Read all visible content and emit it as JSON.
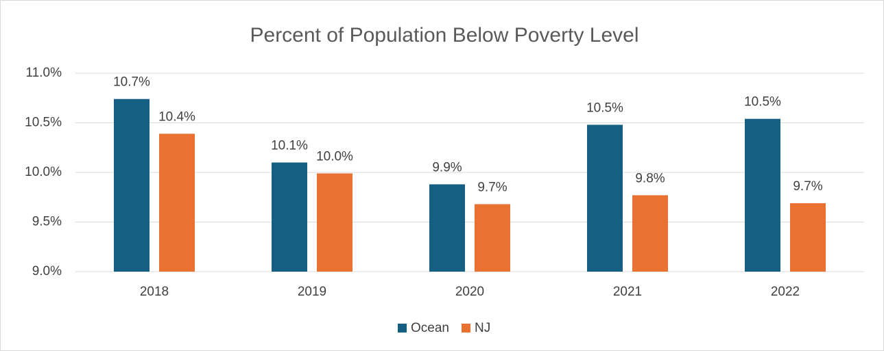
{
  "chart_data": {
    "type": "bar",
    "title": "Percent of Population Below Poverty Level",
    "categories": [
      "2018",
      "2019",
      "2020",
      "2021",
      "2022"
    ],
    "series": [
      {
        "name": "Ocean",
        "color": "#156082",
        "values": [
          10.74,
          10.1,
          9.88,
          10.48,
          10.54
        ],
        "value_labels": [
          "10.7%",
          "10.1%",
          "9.9%",
          "10.5%",
          "10.5%"
        ]
      },
      {
        "name": "NJ",
        "color": "#e97132",
        "values": [
          10.39,
          9.99,
          9.68,
          9.77,
          9.69
        ],
        "value_labels": [
          "10.4%",
          "10.0%",
          "9.7%",
          "9.8%",
          "9.7%"
        ]
      }
    ],
    "ylim": [
      9.0,
      11.0
    ],
    "yticks": [
      {
        "value": 9.0,
        "label": "9.0%"
      },
      {
        "value": 9.5,
        "label": "9.5%"
      },
      {
        "value": 10.0,
        "label": "10.0%"
      },
      {
        "value": 10.5,
        "label": "10.5%"
      },
      {
        "value": 11.0,
        "label": "11.0%"
      }
    ],
    "grid": true,
    "legend": "bottom"
  }
}
